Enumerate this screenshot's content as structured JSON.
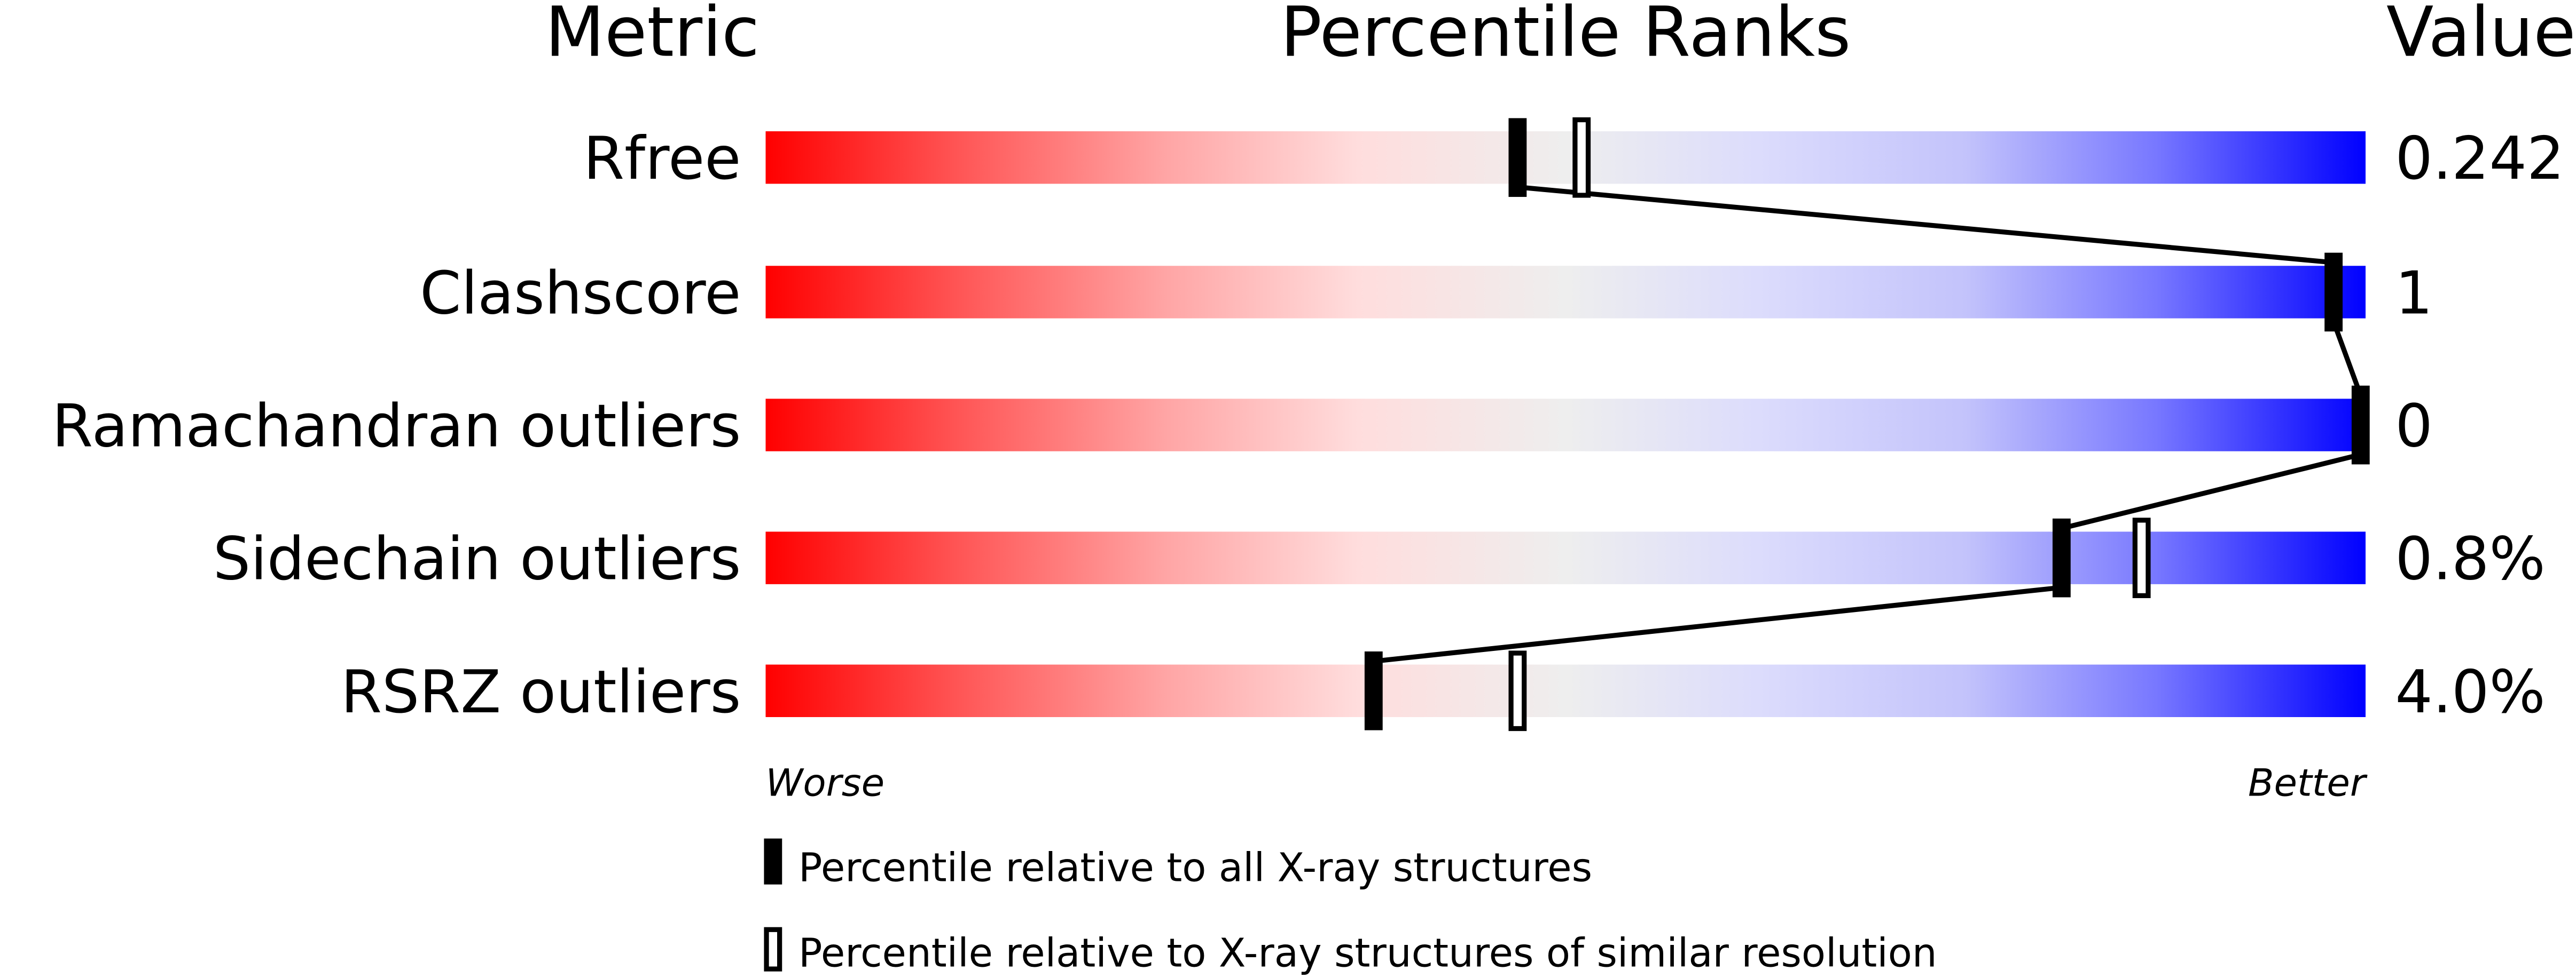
{
  "chart_data": {
    "type": "percentile-slider",
    "headers": {
      "metric": "Metric",
      "ranks": "Percentile Ranks",
      "value": "Value"
    },
    "xlim": [
      0,
      100
    ],
    "axis_labels": {
      "left": "Worse",
      "right": "Better"
    },
    "gradient_colors": {
      "worse": "#ff0000",
      "middle": "#eeeeee",
      "better": "#0000ff"
    },
    "rows": [
      {
        "metric": "Rfree",
        "value": "0.242",
        "percentile_all": 47,
        "percentile_similar": 51
      },
      {
        "metric": "Clashscore",
        "value": "1",
        "percentile_all": 98,
        "percentile_similar": null
      },
      {
        "metric": "Ramachandran outliers",
        "value": "0",
        "percentile_all": 100,
        "percentile_similar": null
      },
      {
        "metric": "Sidechain outliers",
        "value": "0.8%",
        "percentile_all": 81,
        "percentile_similar": 86
      },
      {
        "metric": "RSRZ outliers",
        "value": "4.0%",
        "percentile_all": 38,
        "percentile_similar": 47
      }
    ],
    "legend": [
      {
        "marker": "filled",
        "label": "Percentile relative to all X-ray structures"
      },
      {
        "marker": "open",
        "label": "Percentile relative to X-ray structures of similar resolution"
      }
    ]
  }
}
